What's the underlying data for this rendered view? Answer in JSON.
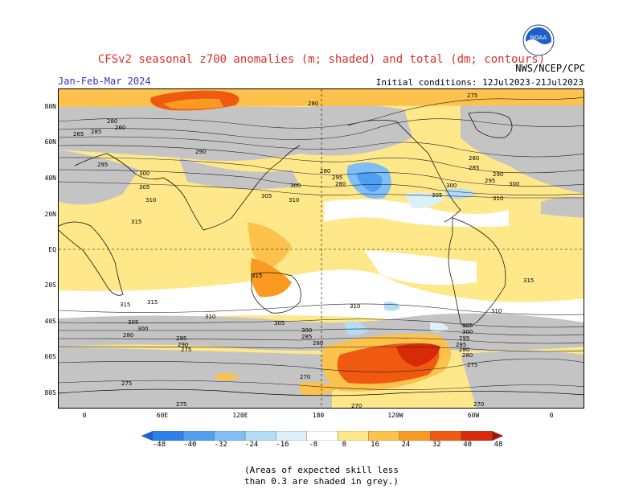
{
  "header": {
    "title": "CFSv2 seasonal z700 anomalies (m; shaded) and total (dm; contours)",
    "season": "Jan-Feb-Mar 2024",
    "initial_conditions": "Initial conditions: 12Jul2023-21Jul2023",
    "agency": "NWS/NCEP/CPC",
    "logo_text": "NOAA"
  },
  "map": {
    "lat_labels": [
      "80N",
      "60N",
      "40N",
      "20N",
      "EQ",
      "20S",
      "40S",
      "60S",
      "80S"
    ],
    "lon_labels": [
      "0",
      "60E",
      "120E",
      "180",
      "120W",
      "60W",
      "0"
    ],
    "contour_labels": [
      "260",
      "265",
      "270",
      "275",
      "280",
      "285",
      "290",
      "295",
      "300",
      "305",
      "310",
      "315"
    ]
  },
  "legend": {
    "levels": [
      "-48",
      "-40",
      "-32",
      "-24",
      "-16",
      "-8",
      "8",
      "16",
      "24",
      "32",
      "40",
      "48"
    ],
    "colors": [
      "#1a5fd6",
      "#2e7fea",
      "#4f9ef2",
      "#7fbff5",
      "#b3dcf7",
      "#dcf0f8",
      "#ffffff",
      "#ffe88a",
      "#fcc24c",
      "#fa9a20",
      "#f05a10",
      "#d82a08",
      "#a51208"
    ]
  },
  "note": {
    "line1": "(Areas of expected skill less",
    "line2": "than 0.3 are shaded in grey.)"
  }
}
